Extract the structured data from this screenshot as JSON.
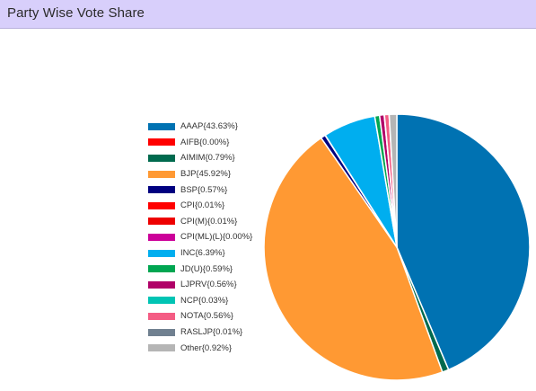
{
  "header": {
    "title": "Party Wise Vote Share"
  },
  "chart_data": {
    "type": "pie",
    "title": "",
    "labels": [
      "AAAP{43.63%}",
      "AIFB{0.00%}",
      "AIMIM{0.79%}",
      "BJP{45.92%}",
      "BSP{0.57%}",
      "CPI{0.01%}",
      "CPI(M){0.01%}",
      "CPI(ML)(L){0.00%}",
      "INC{6.39%}",
      "JD(U){0.59%}",
      "LJPRV{0.56%}",
      "NCP{0.03%}",
      "NOTA{0.56%}",
      "RASLJP{0.01%}",
      "Other{0.92%}"
    ],
    "series": [
      {
        "values": [
          43.63,
          0.0,
          0.79,
          45.92,
          0.57,
          0.01,
          0.01,
          0.0,
          6.39,
          0.59,
          0.56,
          0.03,
          0.56,
          0.01,
          0.92
        ]
      }
    ],
    "colors": [
      "#0072b2",
      "#ff0000",
      "#006a4e",
      "#ff9933",
      "#000080",
      "#ff0000",
      "#ee0000",
      "#cc0099",
      "#00aeef",
      "#00a651",
      "#b00068",
      "#00c4b4",
      "#f45c84",
      "#708090",
      "#b5b5b5"
    ],
    "legend_position": "left",
    "start": "top",
    "direction": "clockwise"
  }
}
